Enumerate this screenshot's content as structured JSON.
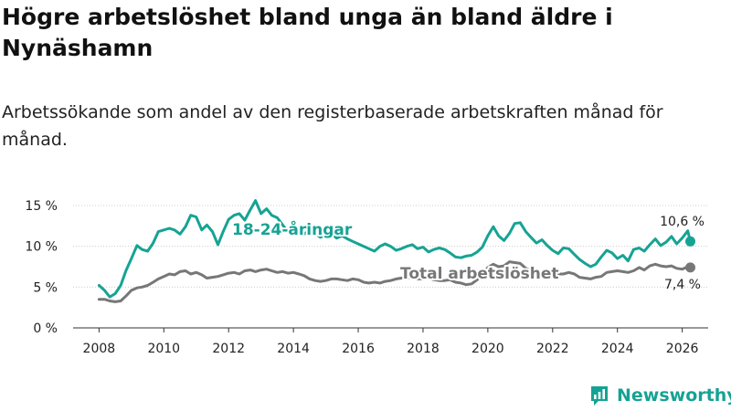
{
  "header": {
    "title": "Högre arbetslöshet bland unga än bland äldre i Nynäshamn",
    "subtitle": "Arbetssökande som andel av den registerbaserade arbetskraften månad för månad."
  },
  "brand": {
    "name": "Newsworthy",
    "logo_icon": "bar-chart-icon"
  },
  "colors": {
    "youth": "#16a394",
    "total": "#777777",
    "grid": "#cccccc",
    "axis": "#333333",
    "brand": "#15a294"
  },
  "chart_data": {
    "type": "line",
    "title": "Högre arbetslöshet bland unga än bland äldre i Nynäshamn",
    "subtitle": "Arbetssökande som andel av den registerbaserade arbetskraften månad för månad.",
    "xlabel": "",
    "ylabel": "",
    "xlim": [
      2007.2,
      2026.8
    ],
    "ylim": [
      0,
      15
    ],
    "x_ticks": [
      2008,
      2010,
      2012,
      2014,
      2016,
      2018,
      2020,
      2022,
      2024,
      2026
    ],
    "x_tick_labels": [
      "2008",
      "2010",
      "2012",
      "2014",
      "2016",
      "2018",
      "2020",
      "2022",
      "2024",
      "2026"
    ],
    "y_ticks": [
      0,
      5,
      10,
      15
    ],
    "y_tick_labels": [
      "0 %",
      "5 %",
      "10 %",
      "15 %"
    ],
    "grid": "horizontal",
    "series": [
      {
        "name": "18-24-åringar",
        "label": "18-24-åringar",
        "end_label": "10,6 %",
        "color": "#16a394",
        "x": [
          2008.0,
          2008.17,
          2008.33,
          2008.5,
          2008.67,
          2008.83,
          2009.0,
          2009.17,
          2009.33,
          2009.5,
          2009.67,
          2009.83,
          2010.0,
          2010.17,
          2010.33,
          2010.5,
          2010.67,
          2010.83,
          2011.0,
          2011.17,
          2011.33,
          2011.5,
          2011.67,
          2011.83,
          2012.0,
          2012.17,
          2012.33,
          2012.5,
          2012.67,
          2012.83,
          2013.0,
          2013.17,
          2013.33,
          2013.5,
          2013.67,
          2013.83,
          2014.0,
          2014.17,
          2014.33,
          2014.5,
          2014.67,
          2014.83,
          2015.0,
          2015.17,
          2015.33,
          2015.5,
          2015.67,
          2015.83,
          2016.0,
          2016.17,
          2016.33,
          2016.5,
          2016.67,
          2016.83,
          2017.0,
          2017.17,
          2017.33,
          2017.5,
          2017.67,
          2017.83,
          2018.0,
          2018.17,
          2018.33,
          2018.5,
          2018.67,
          2018.83,
          2019.0,
          2019.17,
          2019.33,
          2019.5,
          2019.67,
          2019.83,
          2020.0,
          2020.17,
          2020.33,
          2020.5,
          2020.67,
          2020.83,
          2021.0,
          2021.17,
          2021.33,
          2021.5,
          2021.67,
          2021.83,
          2022.0,
          2022.17,
          2022.33,
          2022.5,
          2022.67,
          2022.83,
          2023.0,
          2023.17,
          2023.33,
          2023.5,
          2023.67,
          2023.83,
          2024.0,
          2024.17,
          2024.33,
          2024.5,
          2024.67,
          2024.83,
          2025.0,
          2025.17,
          2025.33,
          2025.5,
          2025.67,
          2025.83,
          2026.0,
          2026.17,
          2026.25
        ],
        "values": [
          5.2,
          4.6,
          3.8,
          4.2,
          5.2,
          7.0,
          8.5,
          10.1,
          9.6,
          9.4,
          10.4,
          11.8,
          12.0,
          12.2,
          12.0,
          11.5,
          12.4,
          13.8,
          13.6,
          12.0,
          12.6,
          11.8,
          10.2,
          11.8,
          13.3,
          13.8,
          14.0,
          13.2,
          14.5,
          15.6,
          14.0,
          14.6,
          13.8,
          13.5,
          12.6,
          11.8,
          12.2,
          11.9,
          11.5,
          12.0,
          11.6,
          11.1,
          11.4,
          11.6,
          11.0,
          11.3,
          10.9,
          10.6,
          10.3,
          10.0,
          9.7,
          9.4,
          10.0,
          10.3,
          10.0,
          9.5,
          9.7,
          10.0,
          10.2,
          9.7,
          9.9,
          9.3,
          9.6,
          9.8,
          9.6,
          9.2,
          8.7,
          8.6,
          8.8,
          8.9,
          9.3,
          9.9,
          11.3,
          12.4,
          11.3,
          10.7,
          11.6,
          12.8,
          12.9,
          11.8,
          11.1,
          10.4,
          10.8,
          10.1,
          9.5,
          9.1,
          9.8,
          9.7,
          9.0,
          8.4,
          7.9,
          7.5,
          7.8,
          8.7,
          9.5,
          9.2,
          8.5,
          8.9,
          8.2,
          9.6,
          9.8,
          9.4,
          10.2,
          10.9,
          10.1,
          10.5,
          11.2,
          10.3,
          11.0,
          11.9,
          10.6
        ]
      },
      {
        "name": "Total arbetslöshet",
        "label": "Total arbetslöshet",
        "end_label": "7,4 %",
        "color": "#777777",
        "x": [
          2008.0,
          2008.17,
          2008.33,
          2008.5,
          2008.67,
          2008.83,
          2009.0,
          2009.17,
          2009.33,
          2009.5,
          2009.67,
          2009.83,
          2010.0,
          2010.17,
          2010.33,
          2010.5,
          2010.67,
          2010.83,
          2011.0,
          2011.17,
          2011.33,
          2011.5,
          2011.67,
          2011.83,
          2012.0,
          2012.17,
          2012.33,
          2012.5,
          2012.67,
          2012.83,
          2013.0,
          2013.17,
          2013.33,
          2013.5,
          2013.67,
          2013.83,
          2014.0,
          2014.17,
          2014.33,
          2014.5,
          2014.67,
          2014.83,
          2015.0,
          2015.17,
          2015.33,
          2015.5,
          2015.67,
          2015.83,
          2016.0,
          2016.17,
          2016.33,
          2016.5,
          2016.67,
          2016.83,
          2017.0,
          2017.17,
          2017.33,
          2017.5,
          2017.67,
          2017.83,
          2018.0,
          2018.17,
          2018.33,
          2018.5,
          2018.67,
          2018.83,
          2019.0,
          2019.17,
          2019.33,
          2019.5,
          2019.67,
          2019.83,
          2020.0,
          2020.17,
          2020.33,
          2020.5,
          2020.67,
          2020.83,
          2021.0,
          2021.17,
          2021.33,
          2021.5,
          2021.67,
          2021.83,
          2022.0,
          2022.17,
          2022.33,
          2022.5,
          2022.67,
          2022.83,
          2023.0,
          2023.17,
          2023.33,
          2023.5,
          2023.67,
          2023.83,
          2024.0,
          2024.17,
          2024.33,
          2024.5,
          2024.67,
          2024.83,
          2025.0,
          2025.17,
          2025.33,
          2025.5,
          2025.67,
          2025.83,
          2026.0,
          2026.17,
          2026.25
        ],
        "values": [
          3.5,
          3.5,
          3.3,
          3.2,
          3.3,
          3.9,
          4.6,
          4.9,
          5.0,
          5.2,
          5.6,
          6.0,
          6.3,
          6.6,
          6.5,
          6.9,
          7.0,
          6.6,
          6.8,
          6.5,
          6.1,
          6.2,
          6.3,
          6.5,
          6.7,
          6.8,
          6.6,
          7.0,
          7.1,
          6.9,
          7.1,
          7.2,
          7.0,
          6.8,
          6.9,
          6.7,
          6.8,
          6.6,
          6.4,
          6.0,
          5.8,
          5.7,
          5.8,
          6.0,
          6.0,
          5.9,
          5.8,
          6.0,
          5.9,
          5.6,
          5.5,
          5.6,
          5.5,
          5.7,
          5.8,
          6.0,
          6.1,
          6.2,
          6.1,
          6.0,
          6.0,
          6.1,
          5.9,
          5.8,
          5.8,
          5.9,
          5.6,
          5.5,
          5.3,
          5.4,
          5.9,
          6.5,
          7.4,
          7.8,
          7.5,
          7.6,
          8.1,
          8.0,
          7.9,
          7.3,
          7.0,
          6.8,
          6.9,
          6.9,
          6.7,
          6.6,
          6.6,
          6.8,
          6.6,
          6.2,
          6.1,
          6.0,
          6.2,
          6.3,
          6.8,
          6.9,
          7.0,
          6.9,
          6.8,
          7.0,
          7.4,
          7.1,
          7.6,
          7.8,
          7.6,
          7.5,
          7.6,
          7.3,
          7.2,
          7.5,
          7.4
        ]
      }
    ]
  }
}
